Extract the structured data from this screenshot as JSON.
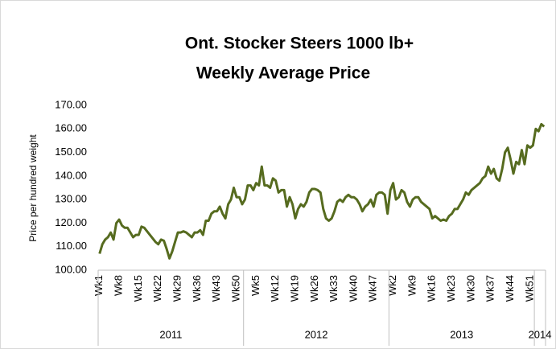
{
  "chart_data": {
    "type": "line",
    "title": "Ont. Stocker Steers 1000 lb+",
    "subtitle": "Weekly Average Price",
    "y_label": "Price per hundred weight",
    "ylim": [
      100,
      170
    ],
    "yticks": [
      {
        "value": 100,
        "label": "100.00"
      },
      {
        "value": 110,
        "label": "110.00"
      },
      {
        "value": 120,
        "label": "120.00"
      },
      {
        "value": 130,
        "label": "130.00"
      },
      {
        "value": 140,
        "label": "140.00"
      },
      {
        "value": 150,
        "label": "150.00"
      },
      {
        "value": 160,
        "label": "160.00"
      },
      {
        "value": 170,
        "label": "170.00"
      }
    ],
    "categories": [
      "Wk1",
      null,
      null,
      null,
      null,
      null,
      null,
      "Wk8",
      null,
      null,
      null,
      null,
      null,
      null,
      "Wk15",
      null,
      null,
      null,
      null,
      null,
      null,
      "Wk22",
      null,
      null,
      null,
      null,
      null,
      null,
      "Wk29",
      null,
      null,
      null,
      null,
      null,
      null,
      "Wk36",
      null,
      null,
      null,
      null,
      null,
      null,
      "Wk43",
      null,
      null,
      null,
      null,
      null,
      null,
      "Wk50",
      null,
      null,
      null,
      null,
      null,
      null,
      "Wk5",
      null,
      null,
      null,
      null,
      null,
      null,
      "Wk12",
      null,
      null,
      null,
      null,
      null,
      null,
      "Wk19",
      null,
      null,
      null,
      null,
      null,
      null,
      "Wk26",
      null,
      null,
      null,
      null,
      null,
      null,
      "Wk33",
      null,
      null,
      null,
      null,
      null,
      null,
      "Wk40",
      null,
      null,
      null,
      null,
      null,
      null,
      "Wk47",
      null,
      null,
      null,
      null,
      null,
      null,
      "Wk2",
      null,
      null,
      null,
      null,
      null,
      null,
      "Wk9",
      null,
      null,
      null,
      null,
      null,
      null,
      "Wk16",
      null,
      null,
      null,
      null,
      null,
      null,
      "Wk23",
      null,
      null,
      null,
      null,
      null,
      null,
      "Wk30",
      null,
      null,
      null,
      null,
      null,
      null,
      "Wk37",
      null,
      null,
      null,
      null,
      null,
      null,
      "Wk44",
      null,
      null,
      null,
      null,
      null,
      null,
      "Wk51",
      null,
      null,
      null,
      null,
      null
    ],
    "x_groups": [
      {
        "label": "2011",
        "start": 0,
        "end": 52
      },
      {
        "label": "2012",
        "start": 52,
        "end": 104
      },
      {
        "label": "2013",
        "start": 104,
        "end": 156
      },
      {
        "label": "2014",
        "start": 156,
        "end": 160
      }
    ],
    "series": [
      {
        "color": "#566b1f",
        "values": [
          107,
          111,
          113,
          114,
          116,
          113,
          120,
          121.5,
          119,
          118,
          118,
          116,
          114,
          115,
          115,
          118.5,
          118,
          116.5,
          115,
          113.5,
          112,
          111,
          113,
          112.5,
          109,
          105,
          108,
          112,
          116,
          116,
          116.5,
          116,
          115,
          114,
          116,
          116,
          117,
          115,
          121,
          121,
          124,
          125,
          125,
          127,
          124,
          122,
          128,
          130,
          135,
          131,
          131,
          128,
          130,
          136,
          136,
          134,
          137,
          136,
          144,
          136,
          136,
          135,
          139,
          138,
          133,
          134,
          134,
          127,
          131,
          128,
          122,
          126,
          128,
          127,
          129,
          133,
          134.5,
          134.5,
          134,
          133,
          126,
          122,
          121,
          122,
          125,
          129,
          130,
          129,
          131,
          132,
          131,
          131,
          130,
          128,
          125,
          127,
          128,
          130,
          127,
          132,
          133,
          133,
          132,
          124,
          134,
          137,
          130,
          131,
          134,
          133,
          129,
          127,
          130,
          131,
          131,
          129,
          128,
          127,
          126,
          122,
          123,
          122,
          121,
          121.5,
          121,
          123,
          124,
          126,
          126,
          128,
          130,
          133,
          132,
          134,
          135,
          136,
          137,
          139,
          140,
          144,
          141,
          143,
          139,
          138,
          143,
          150,
          152,
          147,
          141,
          146,
          145,
          151,
          145,
          153,
          152,
          153,
          160,
          159,
          162,
          161
        ]
      }
    ]
  }
}
